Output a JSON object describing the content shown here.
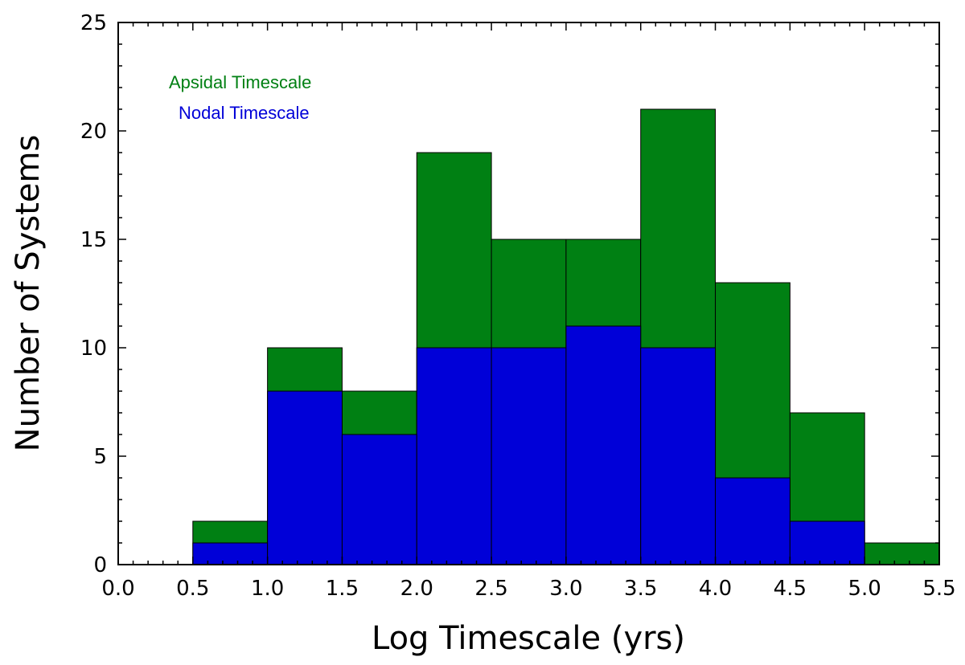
{
  "chart_data": {
    "type": "bar",
    "subtype": "stacked-histogram",
    "xlabel": "Log Timescale (yrs)",
    "ylabel": "Number of Systems",
    "xlim": [
      0.0,
      5.5
    ],
    "ylim": [
      0,
      25
    ],
    "xticks": [
      "0.0",
      "0.5",
      "1.0",
      "1.5",
      "2.0",
      "2.5",
      "3.0",
      "3.5",
      "4.0",
      "4.5",
      "5.0",
      "5.5"
    ],
    "yticks": [
      "0",
      "5",
      "10",
      "15",
      "20",
      "25"
    ],
    "bins": [
      [
        0.5,
        1.0
      ],
      [
        1.0,
        1.5
      ],
      [
        1.5,
        2.0
      ],
      [
        2.0,
        2.5
      ],
      [
        2.5,
        3.0
      ],
      [
        3.0,
        3.5
      ],
      [
        3.5,
        4.0
      ],
      [
        4.0,
        4.5
      ],
      [
        4.5,
        5.0
      ],
      [
        5.0,
        5.5
      ]
    ],
    "series": [
      {
        "name": "Apsidal Timescale",
        "color": "#008013",
        "values": [
          2,
          10,
          8,
          19,
          15,
          15,
          21,
          13,
          7,
          1
        ]
      },
      {
        "name": "Nodal Timescale",
        "color": "#0000d8",
        "values": [
          1,
          8,
          6,
          10,
          10,
          11,
          10,
          4,
          2,
          0
        ]
      }
    ],
    "grid": false,
    "legend_position": "top-left"
  }
}
